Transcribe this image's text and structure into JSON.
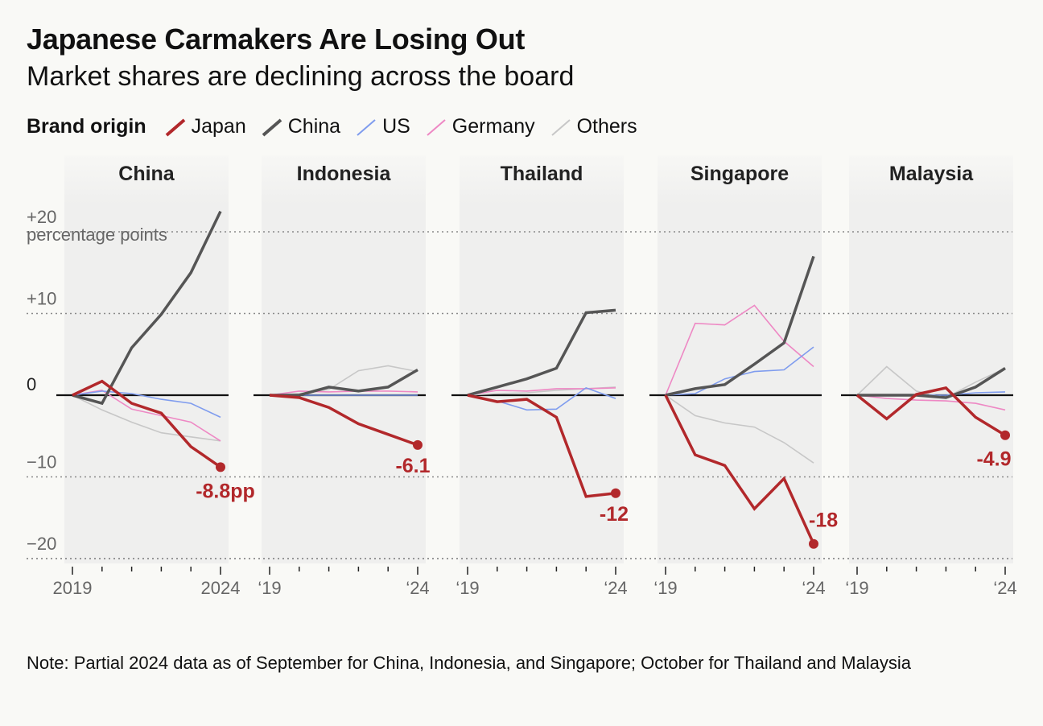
{
  "title": "Japanese Carmakers Are Losing Out",
  "subtitle": "Market shares are declining across the board",
  "legend": {
    "title": "Brand origin",
    "items": [
      {
        "name": "Japan",
        "color": "#b2282b"
      },
      {
        "name": "China",
        "color": "#555555"
      },
      {
        "name": "US",
        "color": "#7f9cee"
      },
      {
        "name": "Germany",
        "color": "#ee88c4"
      },
      {
        "name": "Others",
        "color": "#c7c7c7"
      }
    ]
  },
  "note": "Note: Partial 2024 data as of September for China, Indonesia, and Singapore; October for Thailand and Malaysia",
  "chart_data": {
    "type": "line",
    "x": [
      2019,
      2020,
      2021,
      2022,
      2023,
      2024
    ],
    "ylim": [
      -20,
      22
    ],
    "yticks": [
      {
        "value": 20,
        "label": "+20"
      },
      {
        "value": 10,
        "label": "+10"
      },
      {
        "value": 0,
        "label": "0"
      },
      {
        "value": -10,
        "label": "−10"
      },
      {
        "value": -20,
        "label": "−20"
      }
    ],
    "yunit": "percentage points",
    "grid": true,
    "legend_position": "top",
    "panels": [
      {
        "name": "China",
        "xlabel_start": "2019",
        "xlabel_end": "2024",
        "end_label": "-8.8pp",
        "series": [
          {
            "name": "Others",
            "values": [
              0,
              -1.8,
              -3.3,
              -4.6,
              -5.1,
              -5.6
            ]
          },
          {
            "name": "Germany",
            "values": [
              0,
              0.6,
              -1.7,
              -2.5,
              -3.3,
              -5.6
            ]
          },
          {
            "name": "US",
            "values": [
              0,
              0.5,
              0.2,
              -0.5,
              -1.0,
              -2.7
            ]
          },
          {
            "name": "China",
            "values": [
              0,
              -1.0,
              5.8,
              9.9,
              15.0,
              22.5
            ]
          },
          {
            "name": "Japan",
            "values": [
              0,
              1.7,
              -1.0,
              -2.2,
              -6.3,
              -8.8
            ]
          }
        ]
      },
      {
        "name": "Indonesia",
        "xlabel_start": "‘19",
        "xlabel_end": "‘24",
        "end_label": "-6.1",
        "series": [
          {
            "name": "Others",
            "values": [
              0,
              0.2,
              0.7,
              3.0,
              3.6,
              2.9
            ]
          },
          {
            "name": "Germany",
            "values": [
              0,
              0.5,
              0.4,
              0.5,
              0.5,
              0.4
            ]
          },
          {
            "name": "US",
            "values": [
              0,
              0,
              0,
              0,
              0,
              0
            ]
          },
          {
            "name": "China",
            "values": [
              0,
              0,
              1.0,
              0.5,
              1.0,
              3.1
            ]
          },
          {
            "name": "Japan",
            "values": [
              0,
              -0.3,
              -1.5,
              -3.5,
              -4.8,
              -6.1
            ]
          }
        ]
      },
      {
        "name": "Thailand",
        "xlabel_start": "‘19",
        "xlabel_end": "‘24",
        "end_label": "-12",
        "series": [
          {
            "name": "Others",
            "values": [
              0,
              0.2,
              0.3,
              0.6,
              0.8,
              1.0
            ]
          },
          {
            "name": "Germany",
            "values": [
              0,
              0.6,
              0.5,
              0.8,
              0.8,
              0.9
            ]
          },
          {
            "name": "US",
            "values": [
              0,
              -0.7,
              -1.8,
              -1.7,
              0.9,
              -0.4
            ]
          },
          {
            "name": "China",
            "values": [
              0,
              1.0,
              2.0,
              3.3,
              10.1,
              10.4
            ]
          },
          {
            "name": "Japan",
            "values": [
              0,
              -0.8,
              -0.5,
              -2.7,
              -12.4,
              -12.0
            ]
          }
        ]
      },
      {
        "name": "Singapore",
        "xlabel_start": "‘19",
        "xlabel_end": "‘24",
        "end_label": "-18",
        "series": [
          {
            "name": "Others",
            "values": [
              0,
              -2.5,
              -3.4,
              -3.9,
              -5.8,
              -8.3
            ]
          },
          {
            "name": "Germany",
            "values": [
              0,
              8.8,
              8.6,
              11.0,
              6.6,
              3.5
            ]
          },
          {
            "name": "US",
            "values": [
              0,
              0.2,
              2.0,
              2.9,
              3.1,
              5.9
            ]
          },
          {
            "name": "China",
            "values": [
              0,
              0.8,
              1.3,
              3.8,
              6.4,
              17.0
            ]
          },
          {
            "name": "Japan",
            "values": [
              0,
              -7.3,
              -8.6,
              -13.9,
              -10.2,
              -18.2
            ]
          }
        ]
      },
      {
        "name": "Malaysia",
        "xlabel_start": "‘19",
        "xlabel_end": "‘24",
        "end_label": "-4.9",
        "series": [
          {
            "name": "Others",
            "values": [
              0,
              3.5,
              0.5,
              -0.3,
              1.6,
              3.3
            ]
          },
          {
            "name": "Germany",
            "values": [
              0,
              -0.4,
              -0.6,
              -0.7,
              -1.0,
              -1.8
            ]
          },
          {
            "name": "US",
            "values": [
              0,
              0,
              0,
              0,
              0.3,
              0.4
            ]
          },
          {
            "name": "China",
            "values": [
              0,
              0,
              0,
              -0.3,
              1.0,
              3.3
            ]
          },
          {
            "name": "Japan",
            "values": [
              0,
              -2.9,
              0.1,
              0.9,
              -2.7,
              -4.9
            ]
          }
        ]
      }
    ]
  }
}
